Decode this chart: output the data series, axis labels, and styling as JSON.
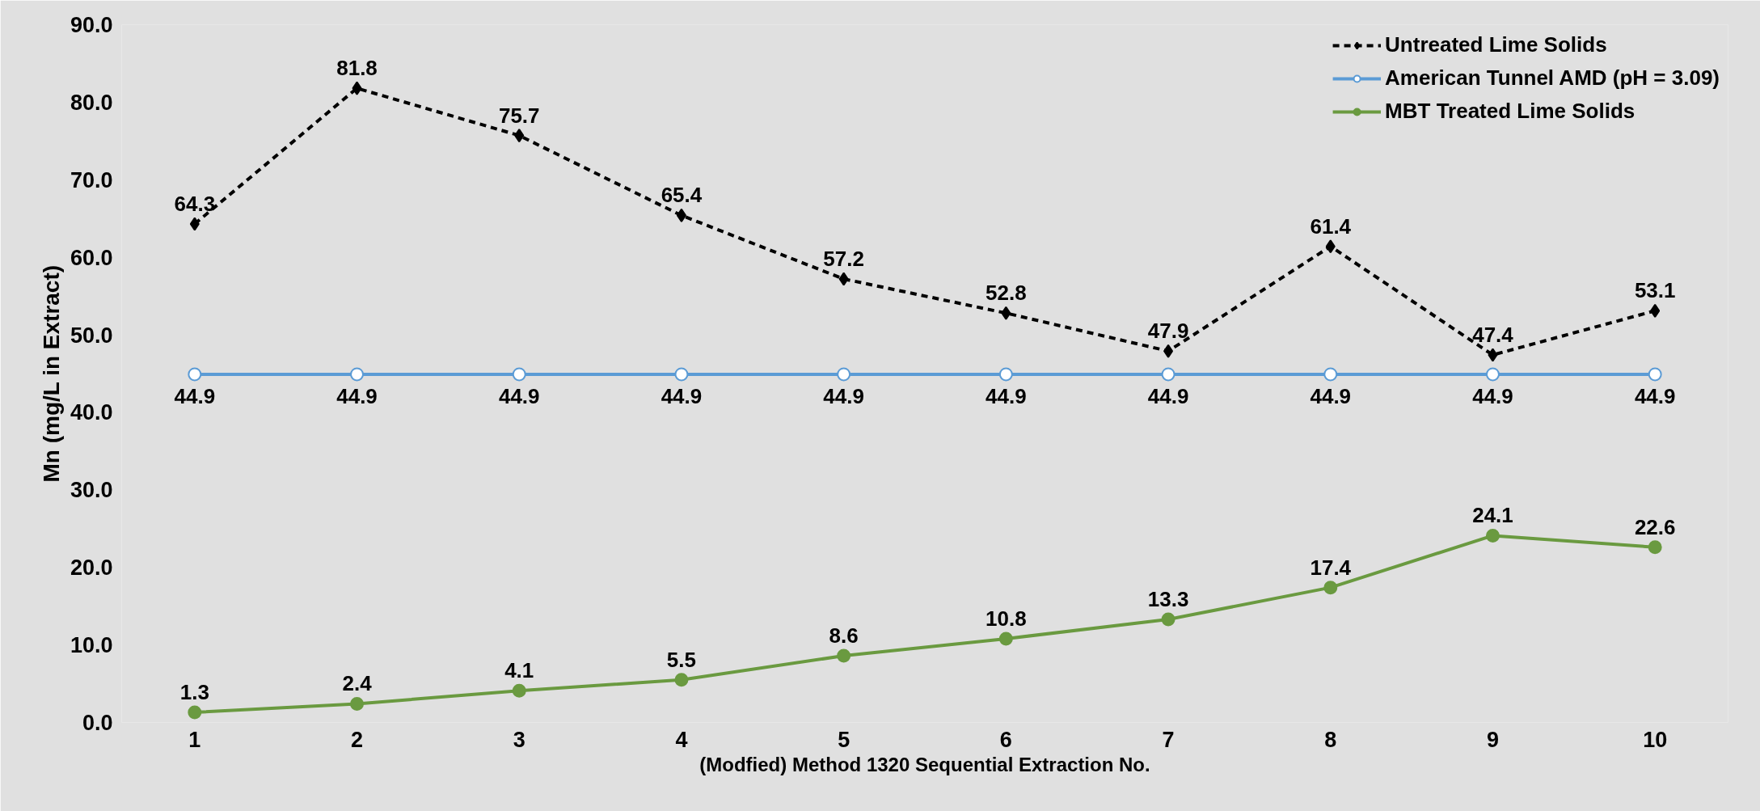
{
  "chart_data": {
    "type": "line",
    "xlabel": "(Modfied) Method 1320 Sequential Extraction No.",
    "ylabel": "Mn (mg/L in Extract)",
    "categories": [
      "1",
      "2",
      "3",
      "4",
      "5",
      "6",
      "7",
      "8",
      "9",
      "10"
    ],
    "ylim": [
      0,
      90
    ],
    "yticks": [
      {
        "value": 0,
        "label": "0.0"
      },
      {
        "value": 10,
        "label": "10.0"
      },
      {
        "value": 20,
        "label": "20.0"
      },
      {
        "value": 30,
        "label": "30.0"
      },
      {
        "value": 40,
        "label": "40.0"
      },
      {
        "value": 50,
        "label": "50.0"
      },
      {
        "value": 60,
        "label": "60.0"
      },
      {
        "value": 70,
        "label": "70.0"
      },
      {
        "value": 80,
        "label": "80.0"
      },
      {
        "value": 90,
        "label": "90.0"
      }
    ],
    "legend": "top right",
    "data_labels": true,
    "series": [
      {
        "name": "Untreated Lime Solids",
        "color": "#000000",
        "marker": "diamond",
        "line_style": "dashed",
        "values": [
          64.3,
          81.8,
          75.7,
          65.4,
          57.2,
          52.8,
          47.9,
          61.4,
          47.4,
          53.1
        ]
      },
      {
        "name": "American Tunnel AMD (pH = 3.09)",
        "color": "#5b9bd5",
        "marker": "circle",
        "line_style": "solid",
        "values": [
          44.9,
          44.9,
          44.9,
          44.9,
          44.9,
          44.9,
          44.9,
          44.9,
          44.9,
          44.9
        ]
      },
      {
        "name": "MBT Treated Lime Solids",
        "color": "#6a9a40",
        "marker": "circle",
        "line_style": "solid",
        "values": [
          1.3,
          2.4,
          4.1,
          5.5,
          8.6,
          10.8,
          13.3,
          17.4,
          24.1,
          22.6
        ]
      }
    ]
  }
}
